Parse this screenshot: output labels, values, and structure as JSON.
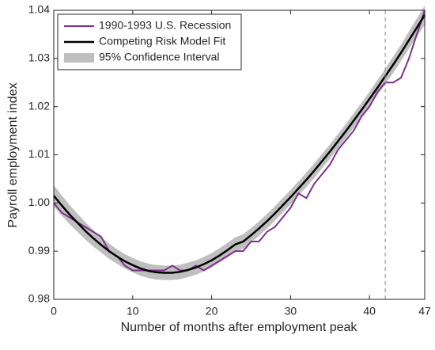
{
  "chart_data": {
    "type": "line",
    "xlabel": "Number of months after employment peak",
    "ylabel": "Payroll employment index",
    "x": [
      0,
      1,
      2,
      3,
      4,
      5,
      6,
      7,
      8,
      9,
      10,
      11,
      12,
      13,
      14,
      15,
      16,
      17,
      18,
      19,
      20,
      21,
      22,
      23,
      24,
      25,
      26,
      27,
      28,
      29,
      30,
      31,
      32,
      33,
      34,
      35,
      36,
      37,
      38,
      39,
      40,
      41,
      42,
      43,
      44,
      45,
      46,
      47
    ],
    "series": [
      {
        "name": "1990-1993 U.S. Recession",
        "color": "#7e2f8e",
        "values": [
          1.0,
          0.998,
          0.997,
          0.996,
          0.995,
          0.994,
          0.993,
          0.99,
          0.989,
          0.987,
          0.986,
          0.986,
          0.986,
          0.986,
          0.986,
          0.987,
          0.986,
          0.986,
          0.987,
          0.986,
          0.987,
          0.988,
          0.989,
          0.99,
          0.99,
          0.992,
          0.992,
          0.994,
          0.995,
          0.997,
          0.999,
          1.002,
          1.001,
          1.004,
          1.006,
          1.008,
          1.011,
          1.013,
          1.015,
          1.018,
          1.02,
          1.023,
          1.025,
          1.025,
          1.026,
          1.03,
          1.035,
          1.04
        ]
      },
      {
        "name": "Competing Risk Model Fit",
        "color": "#000000",
        "values": [
          1.0015,
          0.9995,
          0.9976,
          0.9959,
          0.9942,
          0.9927,
          0.9913,
          0.99,
          0.9889,
          0.9879,
          0.9871,
          0.9864,
          0.9859,
          0.9856,
          0.9855,
          0.9855,
          0.9857,
          0.9861,
          0.9866,
          0.9873,
          0.9881,
          0.9891,
          0.9902,
          0.9914,
          0.992,
          0.9933,
          0.9947,
          0.9962,
          0.9978,
          0.9995,
          1.0012,
          1.003,
          1.0048,
          1.0067,
          1.0087,
          1.0107,
          1.0128,
          1.0149,
          1.0171,
          1.0193,
          1.0216,
          1.0239,
          1.0263,
          1.0287,
          1.0312,
          1.0338,
          1.0364,
          1.039
        ]
      },
      {
        "name": "95% Confidence Interval",
        "color": "#bfbfbf",
        "band": true,
        "values": [
          1.0015,
          0.9995,
          0.9976,
          0.9959,
          0.9942,
          0.9927,
          0.9913,
          0.99,
          0.9889,
          0.9879,
          0.9871,
          0.9864,
          0.9859,
          0.9856,
          0.9855,
          0.9855,
          0.9857,
          0.9861,
          0.9866,
          0.9873,
          0.9881,
          0.9891,
          0.9902,
          0.9914,
          0.992,
          0.9933,
          0.9947,
          0.9962,
          0.9978,
          0.9995,
          1.0012,
          1.003,
          1.0048,
          1.0067,
          1.0087,
          1.0107,
          1.0128,
          1.0149,
          1.0171,
          1.0193,
          1.0216,
          1.0239,
          1.0263,
          1.0287,
          1.0312,
          1.0338,
          1.0364,
          1.039
        ],
        "errors": [
          0.0022,
          0.0021,
          0.002,
          0.0019,
          0.0018,
          0.0017,
          0.0016,
          0.0016,
          0.0015,
          0.0015,
          0.0015,
          0.0015,
          0.0015,
          0.0015,
          0.0015,
          0.0015,
          0.0015,
          0.0015,
          0.0015,
          0.0015,
          0.0015,
          0.0015,
          0.0015,
          0.0015,
          0.0015,
          0.0015,
          0.0015,
          0.0015,
          0.0015,
          0.0015,
          0.0015,
          0.0015,
          0.0015,
          0.0015,
          0.0015,
          0.0015,
          0.0015,
          0.0015,
          0.0015,
          0.0015,
          0.0015,
          0.0016,
          0.0016,
          0.0017,
          0.0017,
          0.0018,
          0.0019,
          0.002
        ]
      }
    ],
    "vline": 42,
    "xlim": [
      0,
      47
    ],
    "xticks": [
      0,
      10,
      20,
      30,
      40,
      47
    ],
    "ylim": [
      0.98,
      1.04
    ],
    "yticks": [
      0.98,
      0.99,
      {
        "value": 1.0,
        "label": "1.00"
      },
      1.01,
      1.02,
      1.03,
      1.04
    ],
    "legend": "upper left"
  }
}
